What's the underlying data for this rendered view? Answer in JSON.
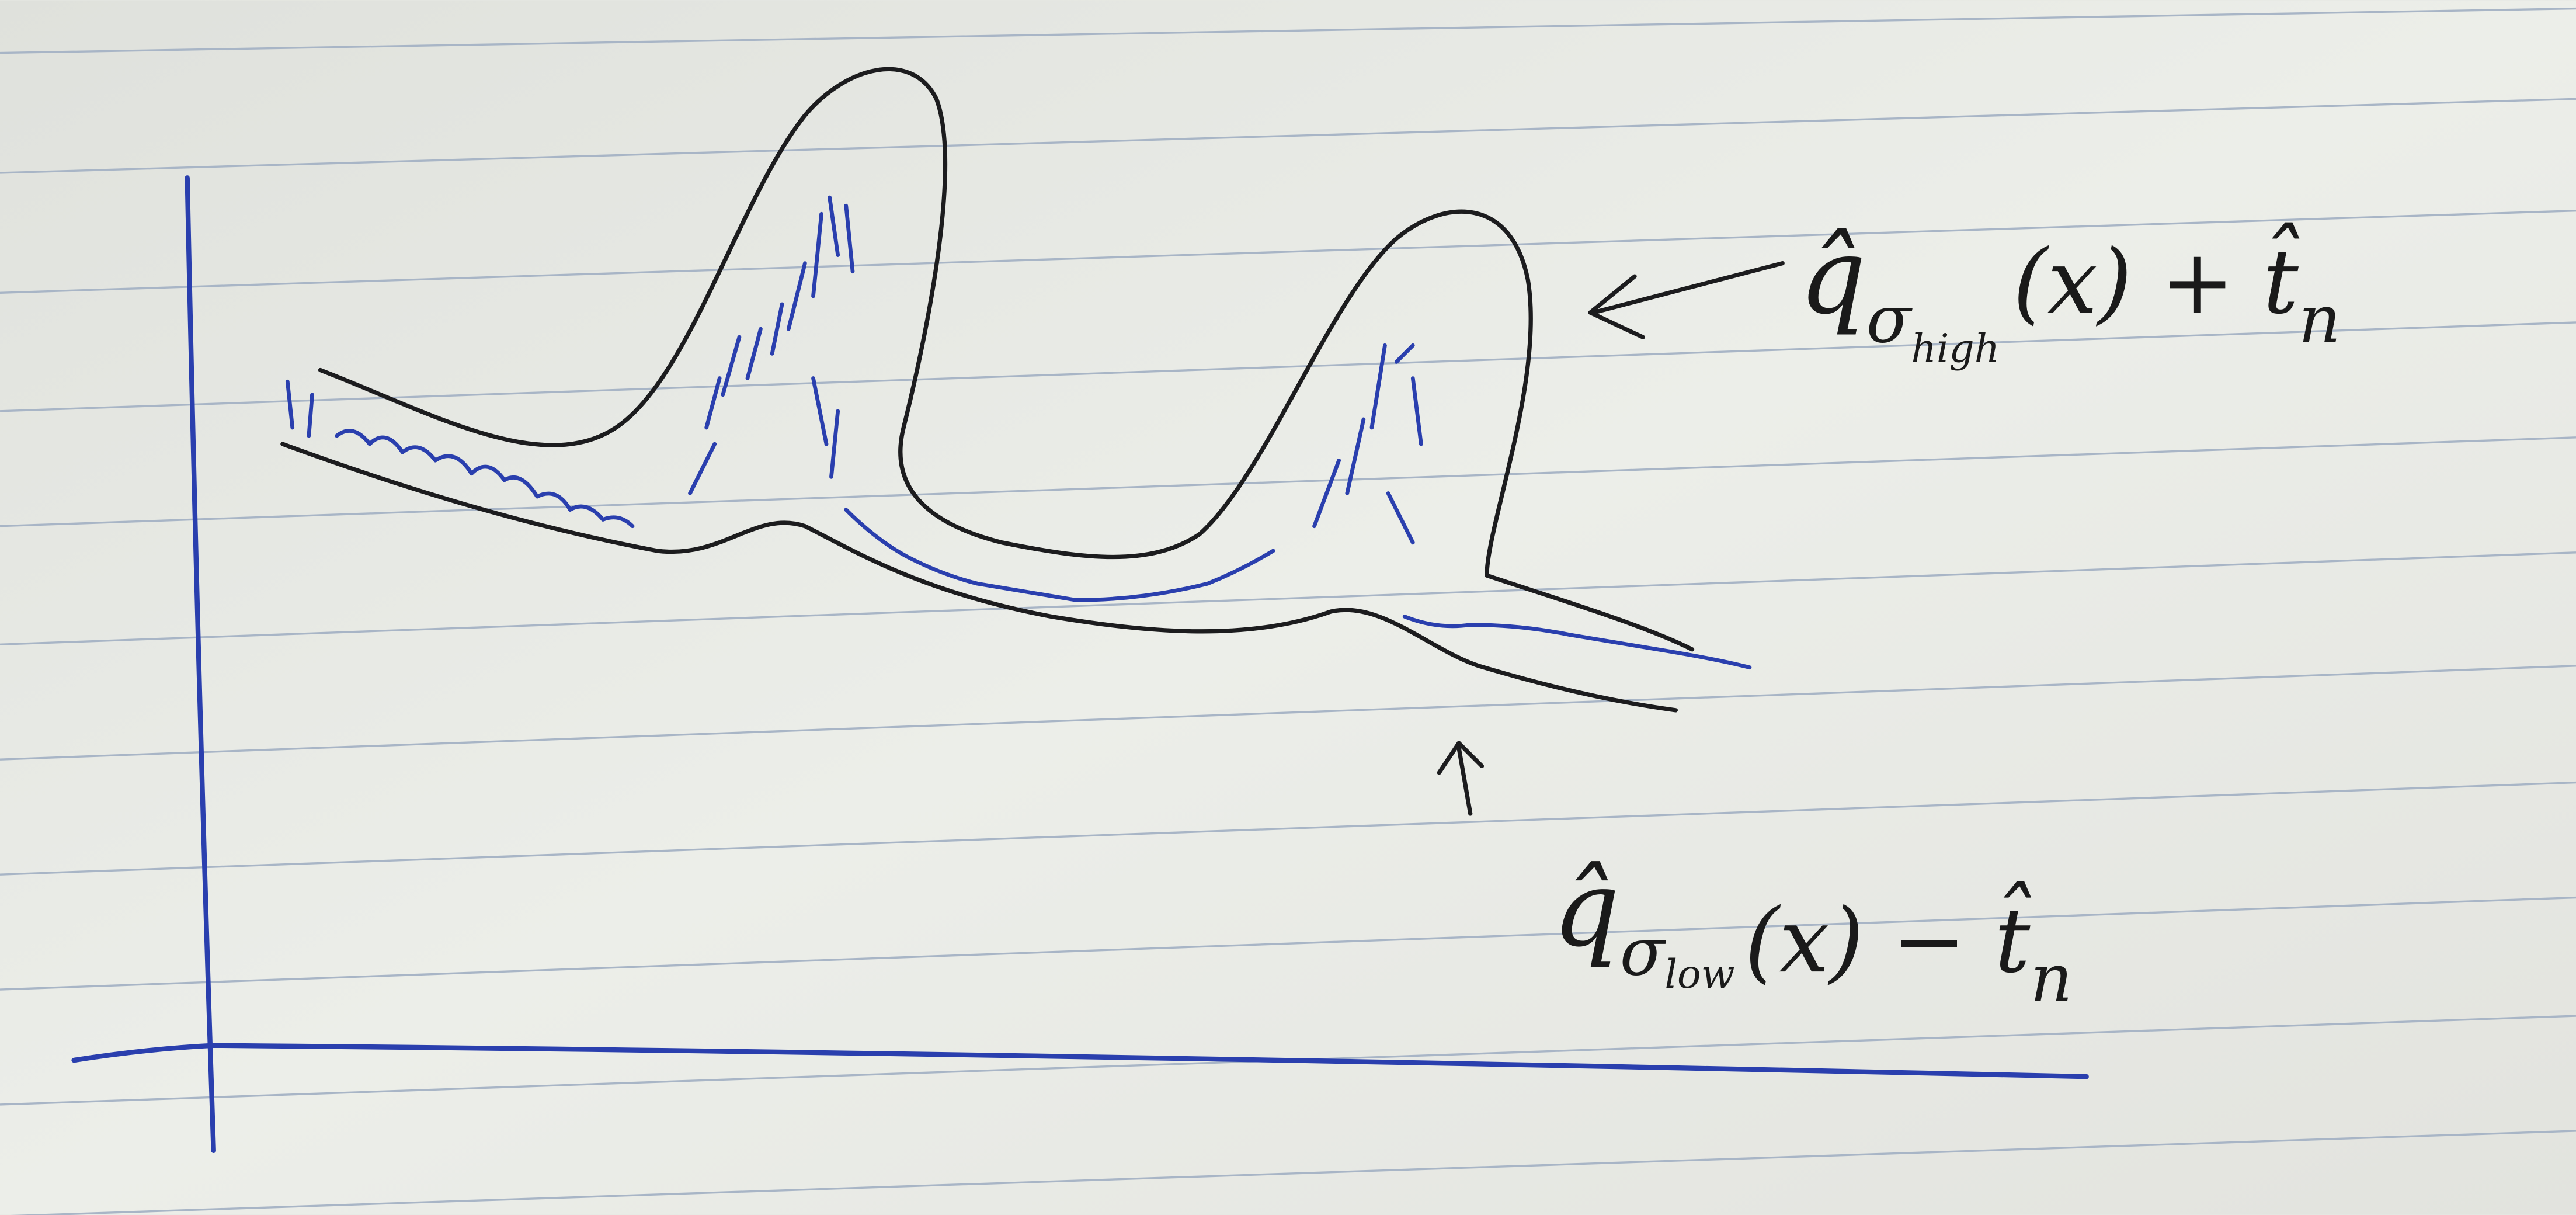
{
  "labels": {
    "upper": {
      "base": "q̂",
      "sub": "σ",
      "subsub": "high",
      "rest": "(x) + t̂",
      "last": "n"
    },
    "lower": {
      "base": "q̂",
      "sub": "σ",
      "subsub": "low",
      "rest": "(x) − t̂",
      "last": "n"
    }
  }
}
